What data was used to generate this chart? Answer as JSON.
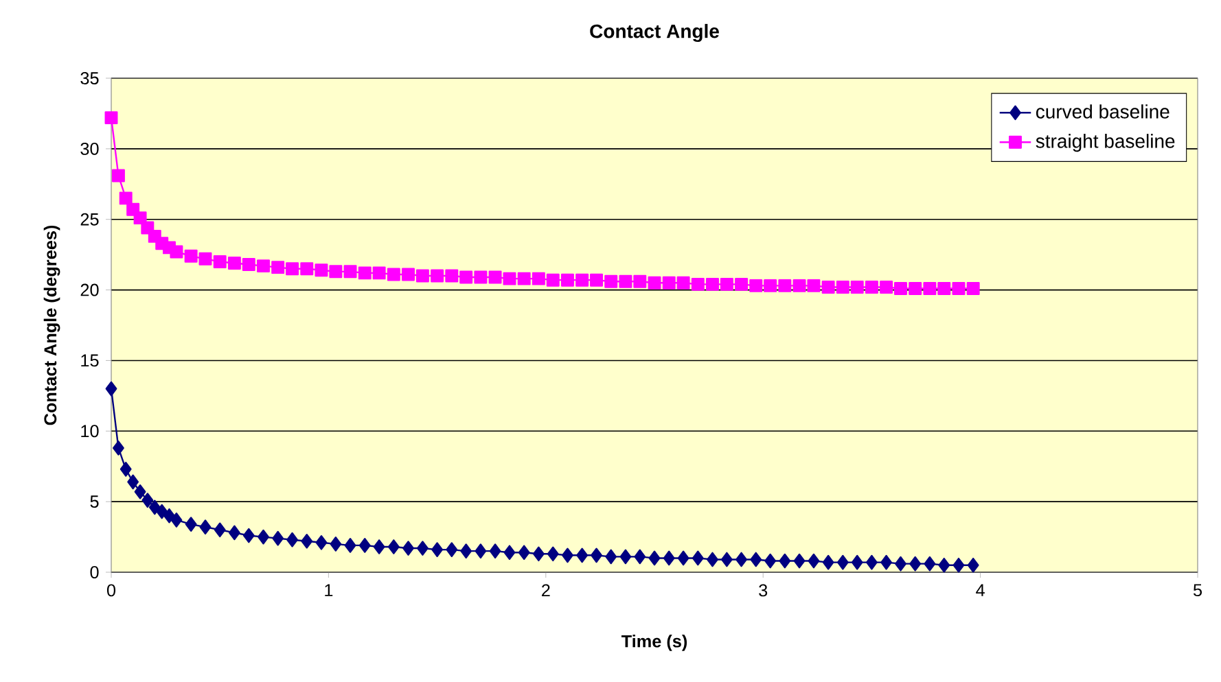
{
  "chart_data": {
    "type": "line",
    "title": "Contact Angle",
    "xlabel": "Time (s)",
    "ylabel": "Contact Angle (degrees)",
    "xlim": [
      0,
      5
    ],
    "xticks": [
      0,
      1,
      2,
      3,
      4,
      5
    ],
    "ylim": [
      0,
      35
    ],
    "yticks": [
      0,
      5,
      10,
      15,
      20,
      25,
      30,
      35
    ],
    "grid": "y",
    "legend": "top right",
    "line_style": "solid",
    "x": [
      0,
      0.033,
      0.067,
      0.1,
      0.133,
      0.167,
      0.2,
      0.233,
      0.267,
      0.3,
      0.367,
      0.433,
      0.5,
      0.567,
      0.633,
      0.7,
      0.767,
      0.833,
      0.9,
      0.967,
      1.033,
      1.1,
      1.167,
      1.233,
      1.3,
      1.367,
      1.433,
      1.5,
      1.567,
      1.633,
      1.7,
      1.767,
      1.833,
      1.9,
      1.967,
      2.033,
      2.1,
      2.167,
      2.233,
      2.3,
      2.367,
      2.433,
      2.5,
      2.567,
      2.633,
      2.7,
      2.767,
      2.833,
      2.9,
      2.967,
      3.033,
      3.1,
      3.167,
      3.233,
      3.3,
      3.367,
      3.433,
      3.5,
      3.567,
      3.633,
      3.7,
      3.767,
      3.833,
      3.9,
      3.967
    ],
    "series": [
      {
        "name": "curved baseline",
        "color": "#000080",
        "marker": "diamond",
        "values": [
          13.0,
          8.8,
          7.3,
          6.4,
          5.7,
          5.1,
          4.6,
          4.3,
          4.0,
          3.7,
          3.4,
          3.2,
          3.0,
          2.8,
          2.6,
          2.5,
          2.4,
          2.3,
          2.2,
          2.1,
          2.0,
          1.9,
          1.9,
          1.8,
          1.8,
          1.7,
          1.7,
          1.6,
          1.6,
          1.5,
          1.5,
          1.5,
          1.4,
          1.4,
          1.3,
          1.3,
          1.2,
          1.2,
          1.2,
          1.1,
          1.1,
          1.1,
          1.0,
          1.0,
          1.0,
          1.0,
          0.9,
          0.9,
          0.9,
          0.9,
          0.8,
          0.8,
          0.8,
          0.8,
          0.7,
          0.7,
          0.7,
          0.7,
          0.7,
          0.6,
          0.6,
          0.6,
          0.5,
          0.5,
          0.5
        ]
      },
      {
        "name": "straight baseline",
        "color": "#ff00ff",
        "marker": "square",
        "values": [
          32.2,
          28.1,
          26.5,
          25.7,
          25.1,
          24.4,
          23.8,
          23.3,
          23.0,
          22.7,
          22.4,
          22.2,
          22.0,
          21.9,
          21.8,
          21.7,
          21.6,
          21.5,
          21.5,
          21.4,
          21.3,
          21.3,
          21.2,
          21.2,
          21.1,
          21.1,
          21.0,
          21.0,
          21.0,
          20.9,
          20.9,
          20.9,
          20.8,
          20.8,
          20.8,
          20.7,
          20.7,
          20.7,
          20.7,
          20.6,
          20.6,
          20.6,
          20.5,
          20.5,
          20.5,
          20.4,
          20.4,
          20.4,
          20.4,
          20.3,
          20.3,
          20.3,
          20.3,
          20.3,
          20.2,
          20.2,
          20.2,
          20.2,
          20.2,
          20.1,
          20.1,
          20.1,
          20.1,
          20.1,
          20.1
        ]
      }
    ]
  }
}
